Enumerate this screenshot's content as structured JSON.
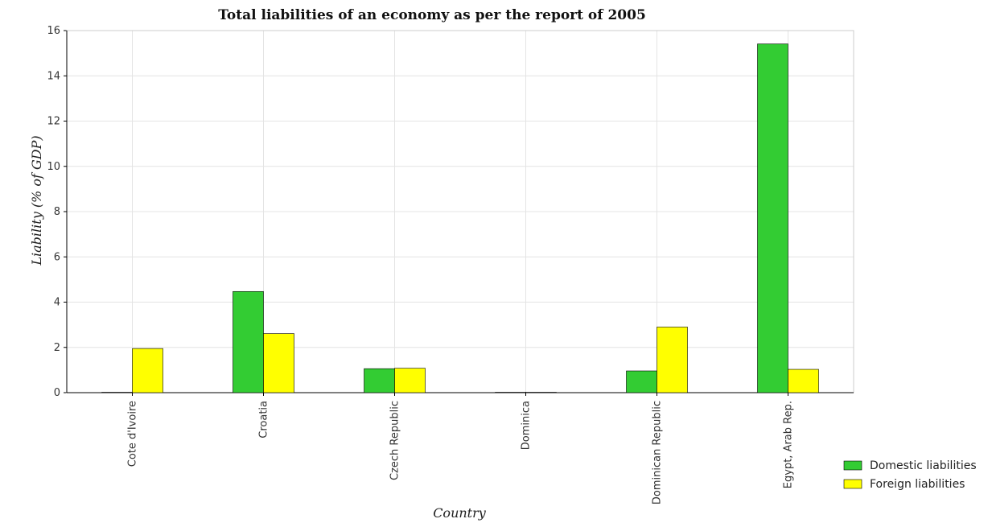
{
  "chart_data": {
    "type": "bar",
    "title": "Total liabilities of an economy as per the report of 2005",
    "xlabel": "Country",
    "ylabel": "Liability (% of GDP)",
    "categories": [
      "Cote d'Ivoire",
      "Croatia",
      "Czech Republic",
      "Dominica",
      "Dominican Republic",
      "Egypt, Arab Rep."
    ],
    "series": [
      {
        "name": "Domestic liabilities",
        "color": "#33cc33",
        "values": [
          0,
          4.47,
          1.06,
          0,
          0.96,
          15.41
        ]
      },
      {
        "name": "Foreign liabilities",
        "color": "#ffff00",
        "values": [
          1.95,
          2.61,
          1.08,
          0,
          2.9,
          1.03
        ]
      }
    ],
    "ylim": [
      0,
      16
    ],
    "yticks": [
      0,
      2,
      4,
      6,
      8,
      10,
      12,
      14,
      16
    ],
    "grid": true,
    "legend_position": "bottom-right"
  }
}
